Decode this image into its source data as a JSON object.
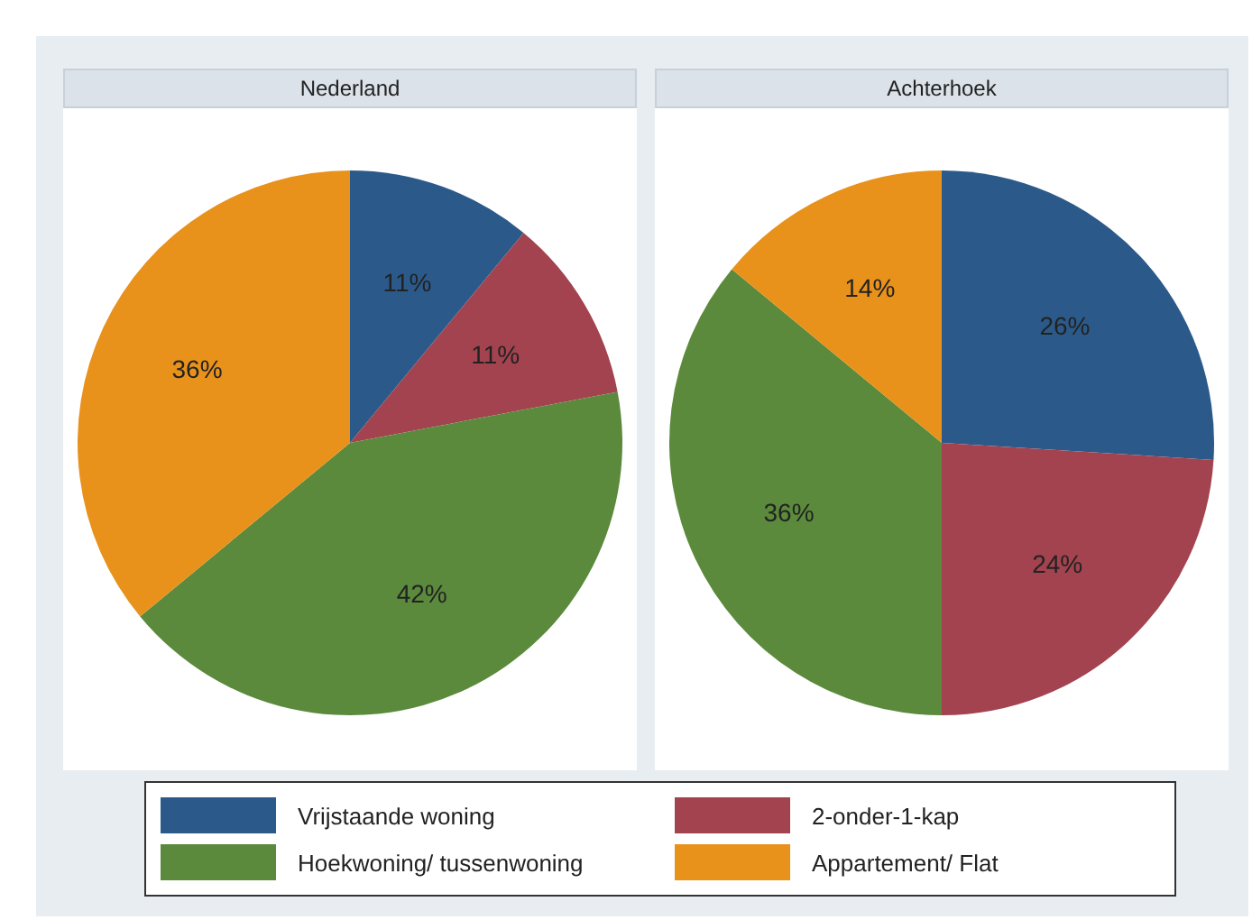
{
  "chart_data": [
    {
      "type": "pie",
      "title": "Nederland",
      "categories": [
        "Vrijstaande woning",
        "2-onder-1-kap",
        "Hoekwoning/ tussenwoning",
        "Appartement/ Flat"
      ],
      "values": [
        11,
        11,
        42,
        36
      ],
      "colors": [
        "#2b5a8a",
        "#a2434f",
        "#5b8a3c",
        "#e8921c"
      ],
      "value_labels": [
        "11%",
        "11%",
        "42%",
        "36%"
      ],
      "legend": "bottom"
    },
    {
      "type": "pie",
      "title": "Achterhoek",
      "categories": [
        null,
        null,
        null,
        null
      ],
      "values": [
        26,
        24,
        36,
        14
      ],
      "colors": [
        "#2b5a8a",
        "#a2434f",
        "#5b8a3c",
        "#e8921c"
      ],
      "value_labels": [
        "26%",
        "24%",
        "36%",
        "14%"
      ]
    }
  ]
}
